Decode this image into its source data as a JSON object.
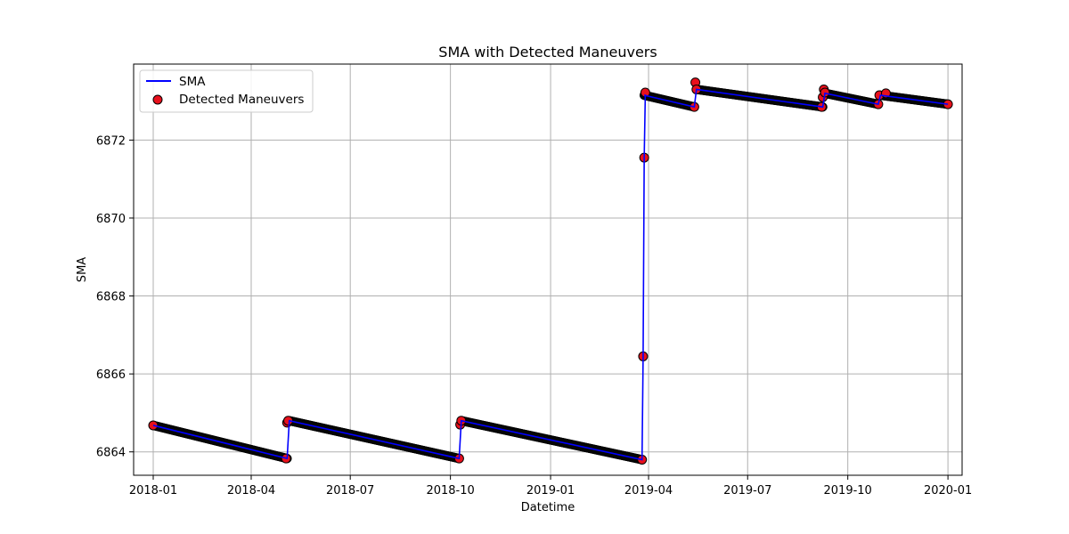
{
  "chart_data": {
    "type": "line",
    "title": "SMA with Detected Maneuvers",
    "xlabel": "Datetime",
    "ylabel": "SMA",
    "x_ticks": [
      "2018-01-01",
      "2018-04-01",
      "2018-07-01",
      "2018-10-01",
      "2019-01-01",
      "2019-04-01",
      "2019-07-01",
      "2019-10-01",
      "2020-01-01"
    ],
    "x_tick_labels": [
      "2018-01",
      "2018-04",
      "2018-07",
      "2018-10",
      "2019-01",
      "2019-04",
      "2019-07",
      "2019-10",
      "2020-01"
    ],
    "y_ticks": [
      6864,
      6866,
      6868,
      6870,
      6872
    ],
    "xlim": [
      "2017-12-14",
      "2020-01-14"
    ],
    "ylim": [
      6863.4,
      6873.95
    ],
    "grid": true,
    "legend_position": "top-left",
    "series_colors": {
      "line": "#0000ff",
      "marker_fill": "#e8101c",
      "marker_edge": "#000000"
    },
    "series": [
      {
        "name": "SMA",
        "kind": "line",
        "segments": [
          {
            "start": [
              "2018-01-01",
              6864.68
            ],
            "end": [
              "2018-05-04",
              6863.83
            ]
          },
          {
            "start": [
              "2018-05-06",
              6864.8
            ],
            "end": [
              "2018-10-09",
              6863.83
            ]
          },
          {
            "start": [
              "2018-10-11",
              6864.8
            ],
            "end": [
              "2019-03-26",
              6863.8
            ]
          },
          {
            "start": [
              "2019-03-28",
              6873.15
            ],
            "end": [
              "2019-05-13",
              6872.85
            ]
          },
          {
            "start": [
              "2019-05-15",
              6873.3
            ],
            "end": [
              "2019-09-08",
              6872.85
            ]
          },
          {
            "start": [
              "2019-09-10",
              6873.2
            ],
            "end": [
              "2019-10-29",
              6872.92
            ]
          },
          {
            "start": [
              "2019-10-31",
              6873.15
            ],
            "end": [
              "2020-01-01",
              6872.92
            ]
          }
        ],
        "jump_points": [
          [
            "2019-03-26",
            6863.8
          ],
          [
            "2019-03-27",
            6866.45
          ],
          [
            "2019-03-28",
            6871.55
          ],
          [
            "2019-03-29",
            6873.15
          ]
        ]
      },
      {
        "name": "Detected Maneuvers",
        "kind": "scatter",
        "highlighted_points": [
          [
            "2018-01-01",
            6864.68
          ],
          [
            "2018-05-03",
            6863.83
          ],
          [
            "2018-05-04",
            6864.75
          ],
          [
            "2018-05-05",
            6864.8
          ],
          [
            "2018-10-09",
            6863.83
          ],
          [
            "2018-10-10",
            6864.7
          ],
          [
            "2018-10-11",
            6864.8
          ],
          [
            "2019-03-26",
            6863.8
          ],
          [
            "2019-03-27",
            6866.45
          ],
          [
            "2019-03-28",
            6871.55
          ],
          [
            "2019-03-29",
            6873.22
          ],
          [
            "2019-05-13",
            6872.85
          ],
          [
            "2019-05-14",
            6873.48
          ],
          [
            "2019-05-15",
            6873.3
          ],
          [
            "2019-09-07",
            6872.85
          ],
          [
            "2019-09-08",
            6873.1
          ],
          [
            "2019-09-09",
            6873.3
          ],
          [
            "2019-09-10",
            6873.22
          ],
          [
            "2019-10-29",
            6872.92
          ],
          [
            "2019-10-30",
            6873.15
          ],
          [
            "2019-11-05",
            6873.2
          ],
          [
            "2020-01-01",
            6872.92
          ]
        ]
      }
    ]
  }
}
